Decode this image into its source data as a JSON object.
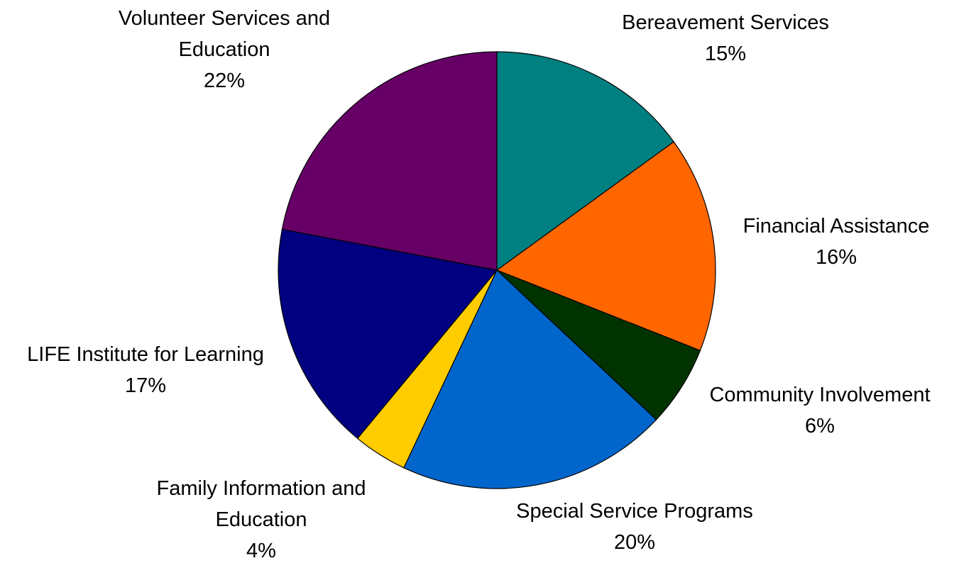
{
  "chart_data": {
    "type": "pie",
    "title": "",
    "slices": [
      {
        "label": "Bereavement Services",
        "value": 15,
        "display": "15%",
        "color": "#008080"
      },
      {
        "label": "Financial Assistance",
        "value": 16,
        "display": "16%",
        "color": "#FF6600"
      },
      {
        "label": "Community Involvement",
        "value": 6,
        "display": "6%",
        "color": "#003300"
      },
      {
        "label": "Special Service Programs",
        "value": 20,
        "display": "20%",
        "color": "#0066CC"
      },
      {
        "label": "Family Information and Education",
        "value": 4,
        "display": "4%",
        "color": "#FFCC00"
      },
      {
        "label": "LIFE Institute for Learning",
        "value": 17,
        "display": "17%",
        "color": "#000080"
      },
      {
        "label": "Volunteer Services and Education",
        "value": 22,
        "display": "22%",
        "color": "#660066"
      }
    ],
    "start": "12 o'clock",
    "direction": "clockwise",
    "legend": "none",
    "labels": {
      "bereavement": {
        "name": "Bereavement Services",
        "pct": "15%"
      },
      "financial": {
        "name": "Financial Assistance",
        "pct": "16%"
      },
      "community": {
        "name": "Community Involvement",
        "pct": "6%"
      },
      "special": {
        "name": "Special Service Programs",
        "pct": "20%"
      },
      "family": {
        "line1": "Family Information and",
        "line2": "Education",
        "pct": "4%"
      },
      "life": {
        "name": "LIFE Institute for Learning",
        "pct": "17%"
      },
      "volunteer": {
        "line1": "Volunteer Services and",
        "line2": "Education",
        "pct": "22%"
      }
    }
  }
}
